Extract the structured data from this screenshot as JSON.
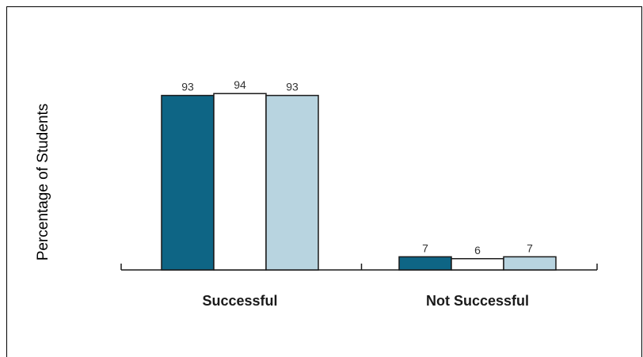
{
  "chart_data": {
    "type": "bar",
    "ylabel": "Percentage of Students",
    "xlabel": "",
    "categories": [
      "Successful",
      "Not Successful"
    ],
    "ylim": [
      0,
      100
    ],
    "grid": false,
    "legend": "none",
    "series": [
      {
        "values": [
          93,
          7
        ],
        "color": "#0e6585"
      },
      {
        "values": [
          94,
          6
        ],
        "color": "#ffffff"
      },
      {
        "values": [
          93,
          7
        ],
        "color": "#b8d4e0"
      }
    ],
    "bar_outline_color": "#1a1a1a"
  }
}
